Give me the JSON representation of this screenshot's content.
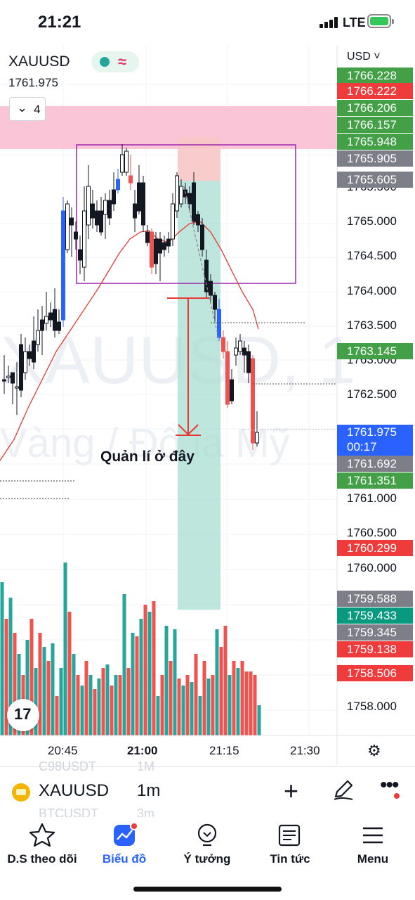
{
  "status_bar": {
    "time": "21:21",
    "network": "LTE"
  },
  "chart_header": {
    "symbol": "XAUUSD",
    "last_price": "1761.975",
    "indicator_count": "4"
  },
  "watermark": {
    "line1": "XAUUSD, 1",
    "line2": "Vàng / Đô la Mỹ"
  },
  "annotation": {
    "text": "Quản lí ở đây"
  },
  "price_axis": {
    "currency": "USD",
    "labels": [
      "1765.500",
      "1765.000",
      "1764.500",
      "1764.000",
      "1763.500",
      "1763.000",
      "1762.500",
      "1761.000",
      "1760.500",
      "1760.000",
      "1758.000"
    ],
    "tags": [
      {
        "value": "1766.228",
        "color": "#43a047"
      },
      {
        "value": "1766.222",
        "color": "#ef3b3b"
      },
      {
        "value": "1766.206",
        "color": "#43a047"
      },
      {
        "value": "1766.157",
        "color": "#43a047"
      },
      {
        "value": "1765.948",
        "color": "#43a047"
      },
      {
        "value": "1765.905",
        "color": "#7c7f88"
      },
      {
        "value": "1765.605",
        "color": "#7c7f88"
      },
      {
        "value": "1763.145",
        "color": "#43a047"
      },
      {
        "value": "1761.975",
        "countdown": "00:17",
        "color": "#2962ff"
      },
      {
        "value": "1761.692",
        "color": "#7c7f88"
      },
      {
        "value": "1761.351",
        "color": "#43a047"
      },
      {
        "value": "1760.299",
        "color": "#ef3b3b"
      },
      {
        "value": "1759.588",
        "color": "#7c7f88"
      },
      {
        "value": "1759.433",
        "color": "#089981"
      },
      {
        "value": "1759.345",
        "color": "#7c7f88"
      },
      {
        "value": "1759.138",
        "color": "#ef3b3b"
      },
      {
        "value": "1758.506",
        "color": "#ef3b3b"
      }
    ]
  },
  "time_axis": {
    "labels": [
      "20:45",
      "21:00",
      "21:15",
      "21:30"
    ]
  },
  "symbol_bar": {
    "symbol": "XAUUSD",
    "interval": "1m",
    "ghost_1": "C98USDT",
    "ghost_1_int": "1M",
    "ghost_2": "BTCUSDT",
    "ghost_2_int": "3m"
  },
  "nav": {
    "watchlist": "D.S theo dõi",
    "chart": "Biểu đồ",
    "ideas": "Ý tưởng",
    "news": "Tin tức",
    "menu": "Menu"
  },
  "colors": {
    "bull": "#26a69a",
    "bear": "#ef5350",
    "accent": "#2962ff",
    "zone": "#f48fb1",
    "box": "#9c27b0"
  }
}
